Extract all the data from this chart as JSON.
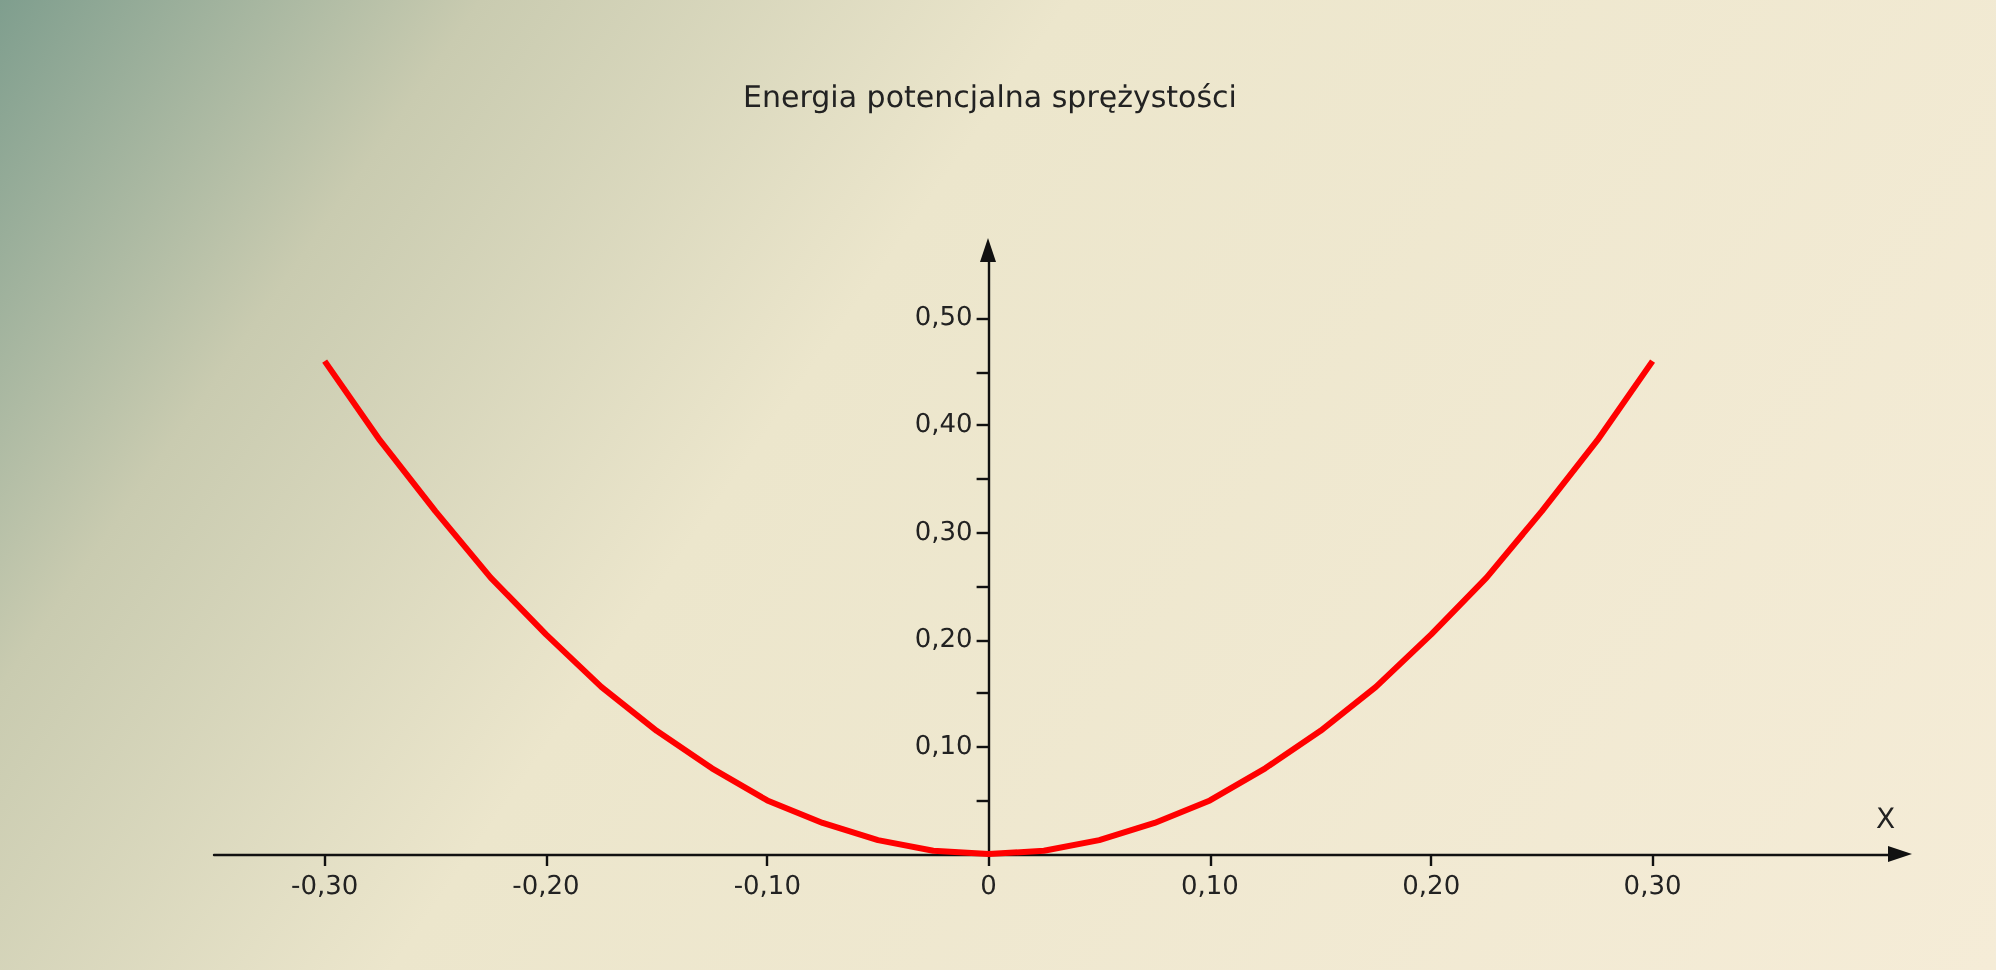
{
  "chart_data": {
    "type": "line",
    "title": "Energia potencjalna sprężystości",
    "xlabel": "X",
    "x": [
      -0.3,
      -0.275,
      -0.25,
      -0.225,
      -0.2,
      -0.175,
      -0.15,
      -0.125,
      -0.1,
      -0.075,
      -0.05,
      -0.025,
      0,
      0.025,
      0.05,
      0.075,
      0.1,
      0.125,
      0.15,
      0.175,
      0.2,
      0.225,
      0.25,
      0.275,
      0.3
    ],
    "series": [
      {
        "color": "#ff0000",
        "values": [
          0.46,
          0.386,
          0.32,
          0.258,
          0.205,
          0.156,
          0.115,
          0.08,
          0.05,
          0.029,
          0.013,
          0.003,
          0,
          0.003,
          0.013,
          0.029,
          0.05,
          0.08,
          0.115,
          0.156,
          0.205,
          0.258,
          0.32,
          0.386,
          0.46
        ]
      }
    ],
    "xlim": [
      -0.35,
      0.41
    ],
    "ylim": [
      0,
      0.56
    ],
    "xticks": [
      {
        "value": -0.3,
        "label": "-0,30"
      },
      {
        "value": -0.2,
        "label": "-0,20"
      },
      {
        "value": -0.1,
        "label": "-0,10"
      },
      0,
      {
        "value": 0.1,
        "label": "0,10"
      },
      {
        "value": 0.2,
        "label": "0,20"
      },
      {
        "value": 0.3,
        "label": "0,30"
      }
    ],
    "yticks": [
      {
        "value": 0.05,
        "label": null
      },
      {
        "value": 0.1,
        "label": "0,10"
      },
      {
        "value": 0.15,
        "label": null
      },
      {
        "value": 0.2,
        "label": "0,20"
      },
      {
        "value": 0.25,
        "label": null
      },
      {
        "value": 0.3,
        "label": "0,30"
      },
      {
        "value": 0.35,
        "label": null
      },
      {
        "value": 0.4,
        "label": "0,40"
      },
      {
        "value": 0.45,
        "label": null
      },
      {
        "value": 0.5,
        "label": "0,50"
      }
    ],
    "marker": "none"
  }
}
